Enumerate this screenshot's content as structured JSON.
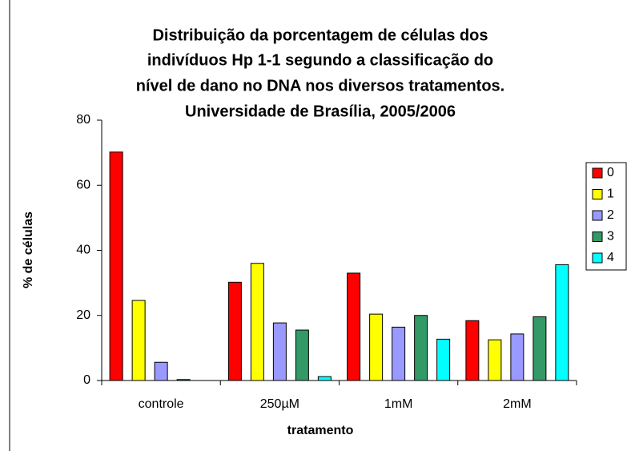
{
  "chart_data": {
    "type": "bar",
    "title": [
      "Distribuição da porcentagem de células dos",
      "indivíduos Hp 1-1 segundo a classificação do",
      "nível de dano no DNA nos diversos tratamentos.",
      "Universidade de Brasília, 2005/2006"
    ],
    "x_label": "tratamento",
    "y_label": "% de células",
    "categories": [
      "controle",
      "250µM",
      "1mM",
      "2mM"
    ],
    "series": [
      {
        "name": "0",
        "color": "#ff0000",
        "values": [
          70.2,
          30.2,
          33,
          18.4
        ]
      },
      {
        "name": "1",
        "color": "#ffff00",
        "values": [
          24.6,
          36,
          20.4,
          12.5
        ]
      },
      {
        "name": "2",
        "color": "#9999ff",
        "values": [
          5.6,
          17.7,
          16.4,
          14.3
        ]
      },
      {
        "name": "3",
        "color": "#339966",
        "values": [
          0.3,
          15.5,
          20,
          19.6
        ]
      },
      {
        "name": "4",
        "color": "#00ffff",
        "values": [
          0,
          1.2,
          12.7,
          35.6
        ]
      }
    ],
    "ylim": [
      0,
      80
    ],
    "yticks": [
      0,
      20,
      40,
      60,
      80
    ],
    "grid": false,
    "legend": "right"
  }
}
